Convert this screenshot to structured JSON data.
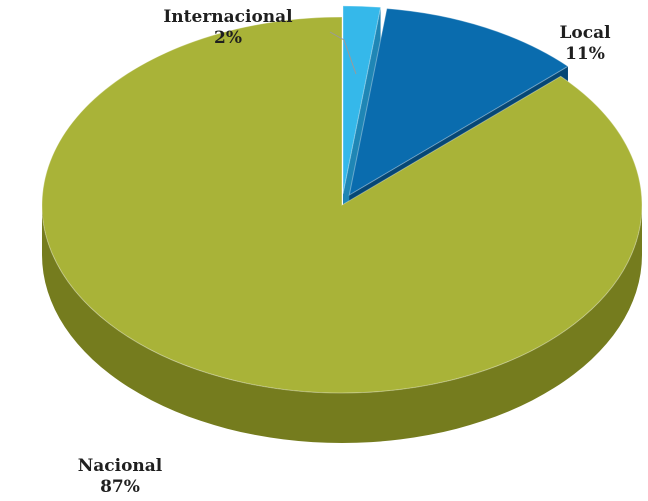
{
  "chart_data": {
    "type": "pie",
    "title": "",
    "slices": [
      {
        "label": "Internacional",
        "percent_label": "2%",
        "value": 2,
        "color": "#35b8ea",
        "side_color": "#1f86b5"
      },
      {
        "label": "Local",
        "percent_label": "11%",
        "value": 11,
        "color": "#0a6cae",
        "side_color": "#064775"
      },
      {
        "label": "Nacional",
        "percent_label": "87%",
        "value": 87,
        "color": "#a9b338",
        "side_color": "#757c1e"
      }
    ],
    "style": "3d",
    "exploded": true
  }
}
